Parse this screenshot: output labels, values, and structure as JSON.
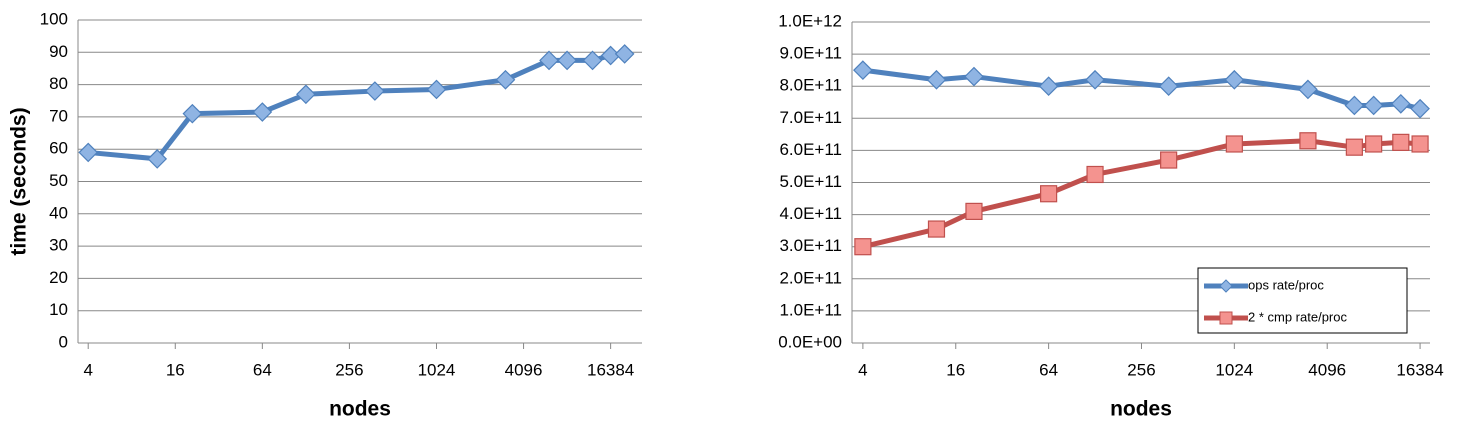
{
  "chart_data": [
    {
      "type": "line",
      "x_label": "nodes",
      "y_label": "time (seconds)",
      "xscale": "log2",
      "x": [
        4,
        12,
        21,
        64,
        128,
        384,
        1024,
        3072,
        6144,
        8192,
        12288,
        16384,
        20480
      ],
      "series": [
        {
          "name": null,
          "color": "#4f81bd",
          "marker": "diamond",
          "values": [
            59,
            57,
            71,
            71.5,
            77,
            78,
            78.5,
            81.5,
            87.5,
            87.5,
            87.5,
            89,
            89.5
          ]
        }
      ],
      "xlim": [
        3.4,
        27000
      ],
      "xticks": [
        4,
        16,
        64,
        256,
        1024,
        4096,
        16384
      ],
      "ylim": [
        0,
        100
      ],
      "yticks": [
        0,
        10,
        20,
        30,
        40,
        50,
        60,
        70,
        80,
        90,
        100
      ],
      "grid": true
    },
    {
      "type": "line",
      "x_label": "nodes",
      "xscale": "log2",
      "x": [
        4,
        12,
        21,
        64,
        128,
        384,
        1024,
        3072,
        6144,
        8192,
        12288,
        16384
      ],
      "series": [
        {
          "name": "ops rate/proc",
          "color": "#4f81bd",
          "marker": "diamond",
          "values": [
            850000000000,
            820000000000,
            830000000000,
            800000000000,
            820000000000,
            800000000000,
            820000000000,
            790000000000,
            740000000000,
            740000000000,
            745000000000,
            730000000000
          ]
        },
        {
          "name": "2 * cmp rate/proc",
          "color": "#c0504d",
          "marker": "square",
          "values": [
            300000000000,
            355000000000,
            410000000000,
            465000000000,
            525000000000,
            570000000000,
            620000000000,
            630000000000,
            610000000000,
            620000000000,
            625000000000,
            620000000000
          ]
        }
      ],
      "xlim": [
        3.4,
        19000
      ],
      "xticks": [
        4,
        16,
        64,
        256,
        1024,
        4096,
        16384
      ],
      "ylim": [
        0,
        1000000000000
      ],
      "yticks": [
        {
          "value": 0,
          "label": "0.0E+00"
        },
        {
          "value": 100000000000,
          "label": "1.0E+11"
        },
        {
          "value": 200000000000,
          "label": "2.0E+11"
        },
        {
          "value": 300000000000,
          "label": "3.0E+11"
        },
        {
          "value": 400000000000,
          "label": "4.0E+11"
        },
        {
          "value": 500000000000,
          "label": "5.0E+11"
        },
        {
          "value": 600000000000,
          "label": "6.0E+11"
        },
        {
          "value": 700000000000,
          "label": "7.0E+11"
        },
        {
          "value": 800000000000,
          "label": "8.0E+11"
        },
        {
          "value": 900000000000,
          "label": "9.0E+11"
        },
        {
          "value": 1000000000000,
          "label": "1.0E+12"
        }
      ],
      "grid": true,
      "legend": "lower right"
    }
  ]
}
